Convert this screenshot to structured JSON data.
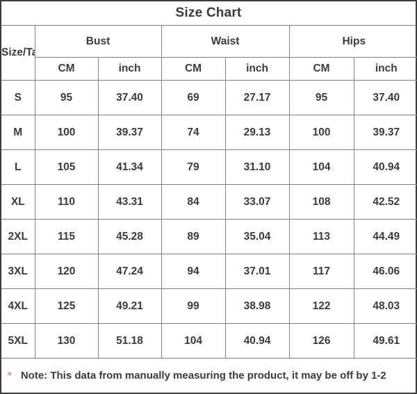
{
  "title": "Size Chart",
  "note": {
    "asterisk": "*",
    "text": "Note: This data from manually measuring the product, it may be off by 1-2"
  },
  "colors": {
    "outer_border": "#3c3c3c",
    "inner_border": "#7f7f7f",
    "text": "#3b3b3b",
    "asterisk": "#e8827e",
    "background": "#ffffff"
  },
  "chart_data": {
    "type": "table",
    "title": "Size Chart",
    "corner_label": "Size/Ta",
    "column_groups": [
      "Bust",
      "Waist",
      "Hips"
    ],
    "unit_headers": [
      "CM",
      "inch",
      "CM",
      "inch",
      "CM",
      "inch"
    ],
    "rows": [
      {
        "size": "S",
        "values": [
          "95",
          "37.40",
          "69",
          "27.17",
          "95",
          "37.40"
        ]
      },
      {
        "size": "M",
        "values": [
          "100",
          "39.37",
          "74",
          "29.13",
          "100",
          "39.37"
        ]
      },
      {
        "size": "L",
        "values": [
          "105",
          "41.34",
          "79",
          "31.10",
          "104",
          "40.94"
        ]
      },
      {
        "size": "XL",
        "values": [
          "110",
          "43.31",
          "84",
          "33.07",
          "108",
          "42.52"
        ]
      },
      {
        "size": "2XL",
        "values": [
          "115",
          "45.28",
          "89",
          "35.04",
          "113",
          "44.49"
        ]
      },
      {
        "size": "3XL",
        "values": [
          "120",
          "47.24",
          "94",
          "37.01",
          "117",
          "46.06"
        ]
      },
      {
        "size": "4XL",
        "values": [
          "125",
          "49.21",
          "99",
          "38.98",
          "122",
          "48.03"
        ]
      },
      {
        "size": "5XL",
        "values": [
          "130",
          "51.18",
          "104",
          "40.94",
          "126",
          "49.61"
        ]
      }
    ],
    "note": "Note: This data from manually measuring the product, it may be off by 1-2"
  }
}
